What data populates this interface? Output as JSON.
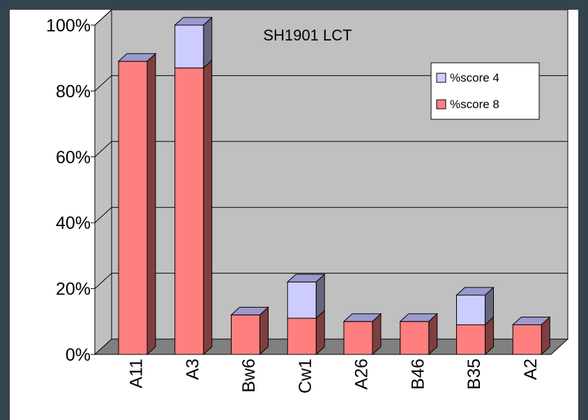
{
  "chart_data": {
    "type": "bar",
    "stacked": true,
    "three_d": true,
    "title": "SH1901 LCT",
    "categories": [
      "A11",
      "A3",
      "Bw6",
      "Cw1",
      "A26",
      "B46",
      "B35",
      "A2"
    ],
    "series": [
      {
        "name": "%score 8",
        "color": "#ff7f7f",
        "values": [
          89,
          87,
          12,
          11,
          10,
          10,
          9,
          9
        ]
      },
      {
        "name": "%score 4",
        "color": "#ccccff",
        "values": [
          0,
          13,
          0,
          11,
          0,
          0,
          9,
          0
        ]
      }
    ],
    "y_ticks": [
      "0%",
      "20%",
      "40%",
      "60%",
      "80%",
      "100%"
    ],
    "ylim": [
      0,
      100
    ],
    "xlabel": "",
    "ylabel": "",
    "grid": true,
    "legend_position": "top-right",
    "colors": {
      "background": "#34444e",
      "plot_wall": "#c0c0c0",
      "floor": "#808080"
    }
  }
}
